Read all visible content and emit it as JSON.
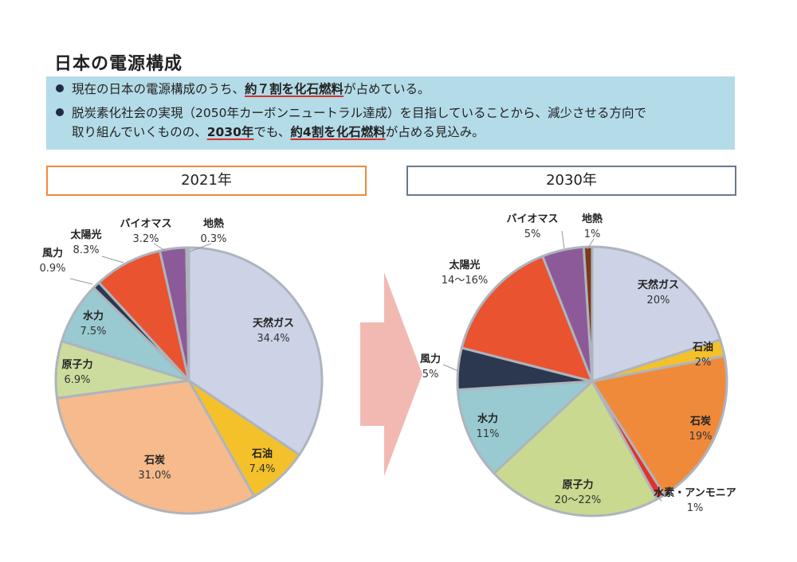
{
  "page": {
    "title": "日本の電源構成",
    "bullet1": {
      "pre": "現在の日本の電源構成のうち、",
      "em": "約７割を化石燃料",
      "post": "が占めている。"
    },
    "bullet2": {
      "pre": "脱炭素化社会の実現（2050年カーボンニュートラル達成）を目指していることから、減少させる方向で",
      "line2_pre": "取り組んでいくものの、",
      "em1": "2030年",
      "mid": "でも、",
      "em2": "約4割を化石燃料",
      "post": "が占める見込み。"
    },
    "year_left": "2021年",
    "year_right": "2030年"
  },
  "chart_data": [
    {
      "type": "pie",
      "title": "2021年",
      "slices": [
        {
          "name": "天然ガス",
          "label": "34.4%",
          "value": 34.4,
          "color": "#cdd3e7"
        },
        {
          "name": "石油",
          "label": "7.4%",
          "value": 7.4,
          "color": "#f4c12b"
        },
        {
          "name": "石炭",
          "label": "31.0%",
          "value": 31.0,
          "color": "#f6ba8c"
        },
        {
          "name": "原子力",
          "label": "6.9%",
          "value": 6.9,
          "color": "#cbdc9e"
        },
        {
          "name": "水力",
          "label": "7.5%",
          "value": 7.5,
          "color": "#99c9d1"
        },
        {
          "name": "風力",
          "label": "0.9%",
          "value": 0.9,
          "color": "#2b3850"
        },
        {
          "name": "太陽光",
          "label": "8.3%",
          "value": 8.3,
          "color": "#e9532f"
        },
        {
          "name": "バイオマス",
          "label": "3.2%",
          "value": 3.2,
          "color": "#8c5a99"
        },
        {
          "name": "地熱",
          "label": "0.3%",
          "value": 0.3,
          "color": "#7a3a1c"
        }
      ]
    },
    {
      "type": "pie",
      "title": "2030年",
      "slices": [
        {
          "name": "天然ガス",
          "label": "20%",
          "value": 20,
          "color": "#cdd3e7"
        },
        {
          "name": "石油",
          "label": "2%",
          "value": 2,
          "color": "#f4c12b"
        },
        {
          "name": "石炭",
          "label": "19%",
          "value": 19,
          "color": "#ef8a3b"
        },
        {
          "name": "水素・アンモニア",
          "label": "1%",
          "value": 1,
          "color": "#e0332b"
        },
        {
          "name": "原子力",
          "label": "20〜22%",
          "value": 21,
          "color": "#c9d98f"
        },
        {
          "name": "水力",
          "label": "11%",
          "value": 11,
          "color": "#99c9d1"
        },
        {
          "name": "風力",
          "label": "5%",
          "value": 5,
          "color": "#2b3850"
        },
        {
          "name": "太陽光",
          "label": "14〜16%",
          "value": 15,
          "color": "#e9532f"
        },
        {
          "name": "バイオマス",
          "label": "5%",
          "value": 5,
          "color": "#8c5a99"
        },
        {
          "name": "地熱",
          "label": "1%",
          "value": 1,
          "color": "#7a3a1c"
        }
      ]
    }
  ]
}
